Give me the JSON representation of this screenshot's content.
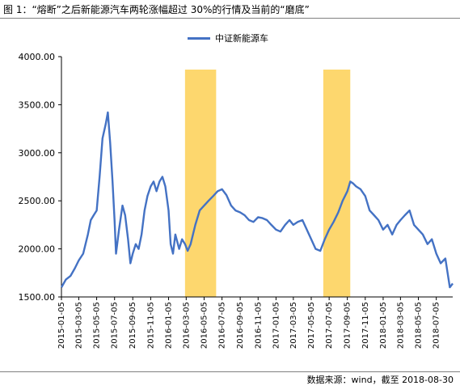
{
  "title": "图 1：“熔断”之后新能源汽车两轮涨幅超过 30%的行情及当前的“磨底”",
  "source": "数据来源：wind，截至 2018-08-30",
  "chart_data": {
    "type": "line",
    "title": "",
    "xlabel": "",
    "ylabel": "",
    "ylim": [
      1500,
      4000
    ],
    "y_ticks": [
      "1500.00",
      "2000.00",
      "2500.00",
      "3000.00",
      "3500.00",
      "4000.00"
    ],
    "x_tick_labels": [
      "2015-01-05",
      "2015-03-05",
      "2015-05-05",
      "2015-07-05",
      "2015-09-05",
      "2015-11-05",
      "2016-01-05",
      "2016-03-05",
      "2016-05-05",
      "2016-07-05",
      "2016-09-05",
      "2016-11-05",
      "2017-01-05",
      "2017-03-05",
      "2017-05-05",
      "2017-07-05",
      "2017-09-05",
      "2017-11-05",
      "2018-01-05",
      "2018-03-05",
      "2018-05-05",
      "2018-07-05"
    ],
    "grid": false,
    "legend_position": "top-center",
    "series": [
      {
        "name": "中证新能源车",
        "color": "#4472c4",
        "x": [
          "2015-01-05",
          "2015-01-20",
          "2015-02-05",
          "2015-02-20",
          "2015-03-05",
          "2015-03-20",
          "2015-04-05",
          "2015-04-15",
          "2015-04-25",
          "2015-05-05",
          "2015-05-15",
          "2015-05-25",
          "2015-06-05",
          "2015-06-12",
          "2015-06-20",
          "2015-06-28",
          "2015-07-05",
          "2015-07-10",
          "2015-07-20",
          "2015-08-01",
          "2015-08-10",
          "2015-08-20",
          "2015-08-28",
          "2015-09-05",
          "2015-09-15",
          "2015-09-25",
          "2015-10-05",
          "2015-10-15",
          "2015-10-25",
          "2015-11-05",
          "2015-11-15",
          "2015-11-25",
          "2015-12-05",
          "2015-12-15",
          "2015-12-25",
          "2016-01-05",
          "2016-01-12",
          "2016-01-20",
          "2016-01-28",
          "2016-02-10",
          "2016-02-20",
          "2016-03-01",
          "2016-03-10",
          "2016-03-20",
          "2016-04-05",
          "2016-04-20",
          "2016-05-05",
          "2016-05-20",
          "2016-06-05",
          "2016-06-20",
          "2016-07-05",
          "2016-07-20",
          "2016-08-05",
          "2016-08-20",
          "2016-09-05",
          "2016-09-20",
          "2016-10-05",
          "2016-10-20",
          "2016-11-05",
          "2016-11-20",
          "2016-12-05",
          "2016-12-20",
          "2017-01-05",
          "2017-01-20",
          "2017-02-05",
          "2017-02-20",
          "2017-03-05",
          "2017-03-20",
          "2017-04-05",
          "2017-04-20",
          "2017-05-05",
          "2017-05-20",
          "2017-06-05",
          "2017-06-20",
          "2017-07-05",
          "2017-07-20",
          "2017-08-05",
          "2017-08-20",
          "2017-09-05",
          "2017-09-15",
          "2017-09-25",
          "2017-10-05",
          "2017-10-20",
          "2017-11-05",
          "2017-11-20",
          "2017-12-05",
          "2017-12-20",
          "2018-01-05",
          "2018-01-20",
          "2018-02-05",
          "2018-02-20",
          "2018-03-05",
          "2018-03-20",
          "2018-04-05",
          "2018-04-20",
          "2018-05-05",
          "2018-05-20",
          "2018-06-05",
          "2018-06-20",
          "2018-07-05",
          "2018-07-20",
          "2018-08-05",
          "2018-08-20",
          "2018-08-30"
        ],
        "values": [
          1600,
          1680,
          1720,
          1800,
          1880,
          1950,
          2150,
          2300,
          2350,
          2400,
          2750,
          3150,
          3300,
          3420,
          3100,
          2700,
          2300,
          1950,
          2200,
          2450,
          2350,
          2100,
          1850,
          1950,
          2050,
          2000,
          2150,
          2400,
          2550,
          2650,
          2700,
          2600,
          2700,
          2750,
          2650,
          2400,
          2050,
          1950,
          2150,
          2000,
          2100,
          2050,
          1980,
          2050,
          2250,
          2400,
          2450,
          2500,
          2550,
          2600,
          2620,
          2560,
          2450,
          2400,
          2380,
          2350,
          2300,
          2280,
          2330,
          2320,
          2300,
          2250,
          2200,
          2180,
          2250,
          2300,
          2250,
          2280,
          2300,
          2200,
          2100,
          2000,
          1980,
          2100,
          2200,
          2280,
          2380,
          2500,
          2600,
          2700,
          2680,
          2650,
          2620,
          2550,
          2400,
          2350,
          2300,
          2200,
          2250,
          2150,
          2250,
          2300,
          2350,
          2400,
          2250,
          2200,
          2150,
          2050,
          2100,
          1950,
          1850,
          1900,
          1600,
          1640
        ]
      }
    ],
    "highlights": [
      {
        "start": "2016-03-01",
        "end": "2016-06-15",
        "color": "#fdd35e"
      },
      {
        "start": "2017-06-15",
        "end": "2017-09-15",
        "color": "#fdd35e"
      }
    ]
  }
}
